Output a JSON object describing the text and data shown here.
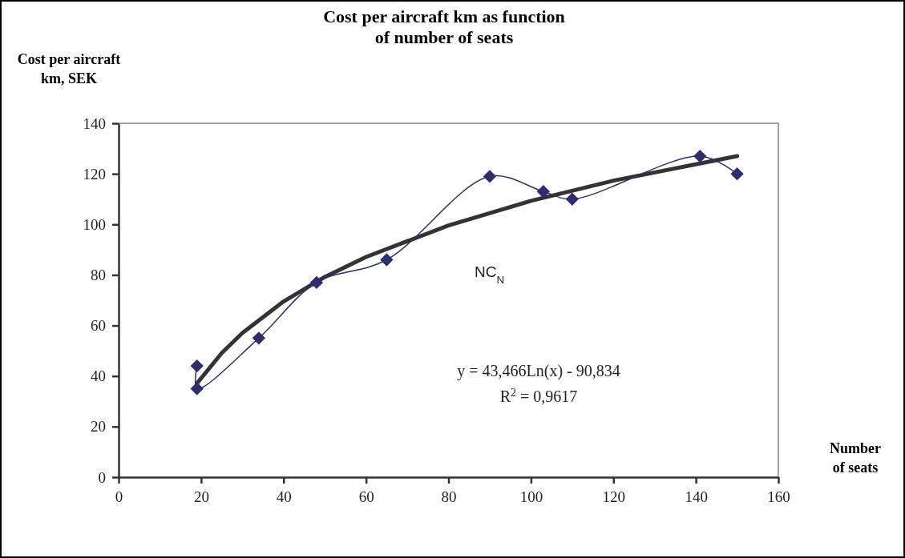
{
  "chart_data": {
    "type": "line",
    "title": "Cost per aircraft km as function of number of seats",
    "ylabel": "Cost per aircraft km, SEK",
    "xlabel": "Number of seats",
    "xlim": [
      0,
      160
    ],
    "xticks": [
      0,
      20,
      40,
      60,
      80,
      100,
      120,
      140,
      160
    ],
    "ylim": [
      0,
      140
    ],
    "yticks": [
      0,
      20,
      40,
      60,
      80,
      100,
      120,
      140
    ],
    "grid": false,
    "series": [
      {
        "color": "#2e2e6e",
        "marker": "diamond",
        "x": [
          19,
          19,
          34,
          48,
          65,
          90,
          103,
          110,
          141,
          150
        ],
        "values": [
          44,
          35,
          55,
          77,
          86,
          119,
          113,
          110,
          127,
          120
        ]
      },
      {
        "color": "#333333",
        "marker": "none",
        "x": [
          19,
          25,
          30,
          40,
          50,
          60,
          80,
          100,
          120,
          150
        ],
        "values": [
          37.1,
          49.1,
          57.0,
          69.5,
          79.2,
          87.1,
          99.6,
          109.3,
          117.3,
          127.0
        ]
      }
    ],
    "annotations": [
      "NC$_{N}$",
      "y = 43,466Ln(x) - 90,834",
      "R$^{2}$ = 0,9617"
    ]
  }
}
